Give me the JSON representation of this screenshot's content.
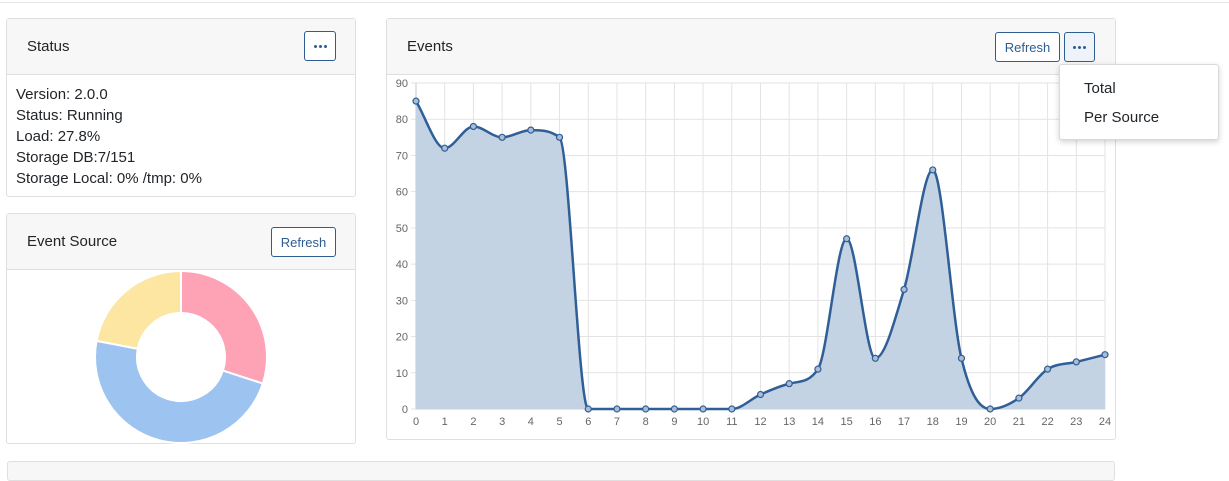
{
  "status_card": {
    "title": "Status",
    "lines": [
      "Version: 2.0.0",
      "Status: Running",
      "Load: 27.8%",
      "Storage DB:7/151",
      "Storage Local: 0% /tmp: 0%"
    ]
  },
  "event_source_card": {
    "title": "Event Source",
    "refresh_label": "Refresh",
    "donut": {
      "slices": [
        {
          "value": 30,
          "color": "#fea3b6"
        },
        {
          "value": 48,
          "color": "#9dc4f0"
        },
        {
          "value": 22,
          "color": "#fde6a1"
        }
      ]
    }
  },
  "events_card": {
    "title": "Events",
    "refresh_label": "Refresh"
  },
  "dropdown": {
    "items": [
      "Total",
      "Per Source"
    ]
  },
  "chart_data": {
    "type": "area",
    "x": [
      0,
      1,
      2,
      3,
      4,
      5,
      6,
      7,
      8,
      9,
      10,
      11,
      12,
      13,
      14,
      15,
      16,
      17,
      18,
      19,
      20,
      21,
      22,
      23,
      24
    ],
    "series": [
      {
        "values": [
          85,
          72,
          78,
          75,
          77,
          75,
          0,
          0,
          0,
          0,
          0,
          0,
          4,
          7,
          11,
          47,
          14,
          33,
          66,
          14,
          0,
          3,
          11,
          13,
          15
        ],
        "color": "#2f5f96",
        "fill": "#c4d3e4"
      }
    ],
    "xlim": [
      0,
      24
    ],
    "ylim": [
      0,
      90
    ],
    "yticks": [
      0,
      10,
      20,
      30,
      40,
      50,
      60,
      70,
      80,
      90
    ],
    "xticks": [
      0,
      1,
      2,
      3,
      4,
      5,
      6,
      7,
      8,
      9,
      10,
      11,
      12,
      13,
      14,
      15,
      16,
      17,
      18,
      19,
      20,
      21,
      22,
      23,
      24
    ],
    "grid": true
  }
}
